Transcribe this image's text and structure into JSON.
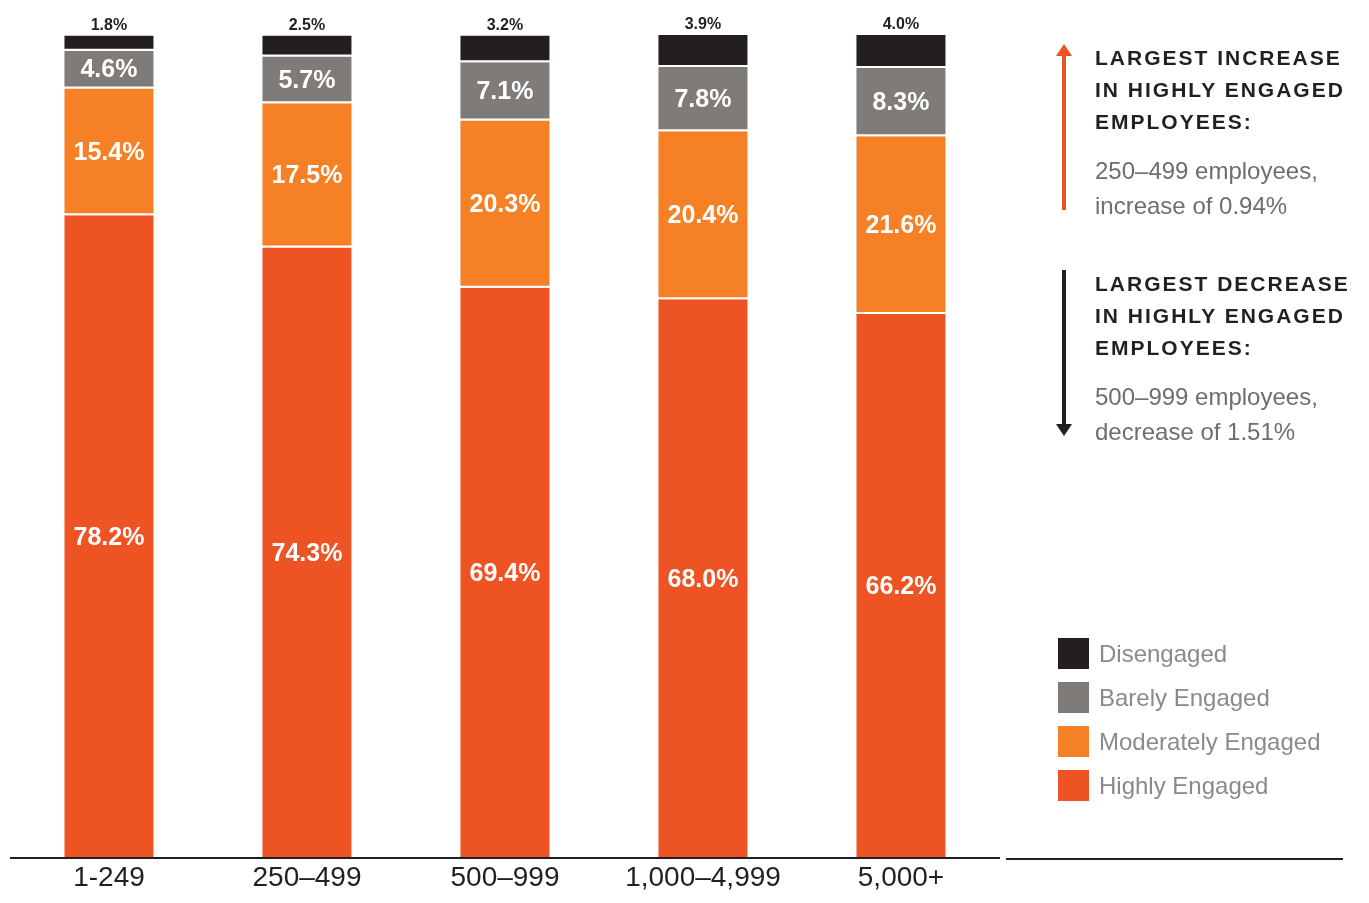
{
  "chart_data": {
    "type": "bar",
    "stacked": true,
    "categories": [
      "1-249",
      "250–499",
      "500–999",
      "1,000–4,999",
      "5,000+"
    ],
    "series": [
      {
        "name": "Highly Engaged",
        "color": "#ee5324",
        "values": [
          78.2,
          74.3,
          69.4,
          68.0,
          66.2
        ],
        "value_labels": [
          "78.2%",
          "74.3%",
          "69.4%",
          "68.0%",
          "66.2%"
        ]
      },
      {
        "name": "Moderately Engaged",
        "color": "#f58025",
        "values": [
          15.4,
          17.5,
          20.3,
          20.4,
          21.6
        ],
        "value_labels": [
          "15.4%",
          "17.5%",
          "20.3%",
          "20.4%",
          "21.6%"
        ]
      },
      {
        "name": "Barely Engaged",
        "color": "#7f7b78",
        "values": [
          4.6,
          5.7,
          7.1,
          7.8,
          8.3
        ],
        "value_labels": [
          "4.6%",
          "5.7%",
          "7.1%",
          "7.8%",
          "8.3%"
        ]
      },
      {
        "name": "Disengaged",
        "color": "#231f20",
        "values": [
          1.8,
          2.5,
          3.2,
          3.9,
          4.0
        ],
        "value_labels": [
          "1.8%",
          "2.5%",
          "3.2%",
          "3.9%",
          "4.0%"
        ]
      }
    ],
    "annotations": [
      "LARGEST INCREASE IN HIGHLY ENGAGED EMPLOYEES:",
      "250–499 employees, increase of 0.94%",
      "LARGEST DECREASE IN HIGHLY ENGAGED EMPLOYEES:",
      "500–999 employees, decrease of 1.51%"
    ],
    "legend": "right",
    "grid": false
  }
}
